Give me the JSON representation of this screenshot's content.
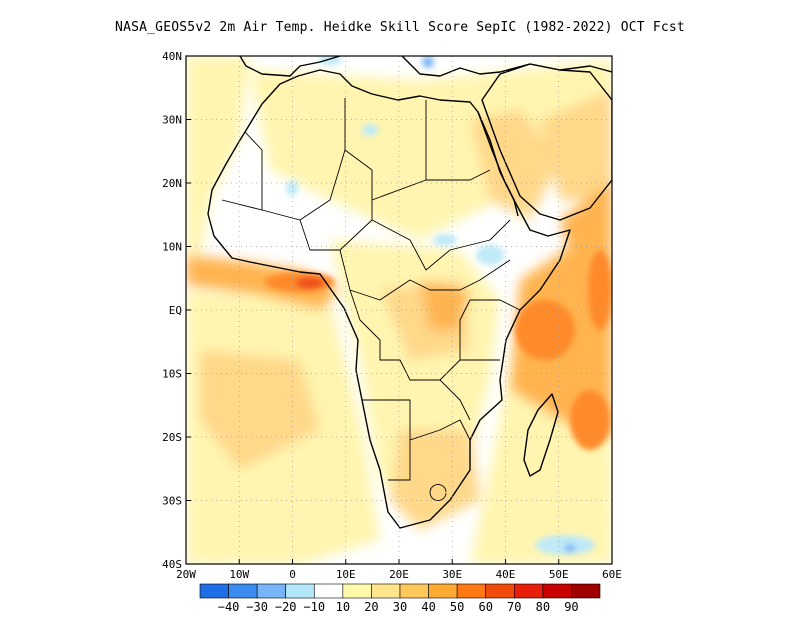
{
  "title": "NASA_GEOS5v2  2m Air Temp. Heidke Skill Score SepIC (1982-2022) OCT Fcst",
  "map": {
    "lon_range": [
      -20,
      60
    ],
    "lat_range": [
      -40,
      40
    ],
    "lon_ticks": [
      {
        "v": -20,
        "label": "20W"
      },
      {
        "v": -10,
        "label": "10W"
      },
      {
        "v": 0,
        "label": "0"
      },
      {
        "v": 10,
        "label": "10E"
      },
      {
        "v": 20,
        "label": "20E"
      },
      {
        "v": 30,
        "label": "30E"
      },
      {
        "v": 40,
        "label": "40E"
      },
      {
        "v": 50,
        "label": "50E"
      },
      {
        "v": 60,
        "label": "60E"
      }
    ],
    "lat_ticks": [
      {
        "v": 40,
        "label": "40N"
      },
      {
        "v": 30,
        "label": "30N"
      },
      {
        "v": 20,
        "label": "20N"
      },
      {
        "v": 10,
        "label": "10N"
      },
      {
        "v": 0,
        "label": "EQ"
      },
      {
        "v": -10,
        "label": "10S"
      },
      {
        "v": -20,
        "label": "20S"
      },
      {
        "v": -30,
        "label": "30S"
      },
      {
        "v": -40,
        "label": "40S"
      }
    ]
  },
  "colorbar": {
    "colors": [
      "#1e6ee6",
      "#3c8cf0",
      "#78b4f8",
      "#b4e6fa",
      "#ffffff",
      "#fffaaa",
      "#ffe68c",
      "#ffc85a",
      "#ffaa32",
      "#ff7814",
      "#f04b0a",
      "#e61e0a",
      "#c80000",
      "#a00000"
    ],
    "labels": [
      "-40",
      "-30",
      "-20",
      "-10",
      "10",
      "20",
      "30",
      "40",
      "50",
      "60",
      "70",
      "80",
      "90"
    ]
  },
  "fields": {
    "background": "#ffffff",
    "field_colors": {
      "light": "#fff5b0",
      "mid": "#ffd88a",
      "warm": "#ffb450",
      "hot": "#ff8a2a",
      "red": "#f0501e",
      "cool": "#bfeaf8",
      "blue": "#80b8f4"
    }
  }
}
